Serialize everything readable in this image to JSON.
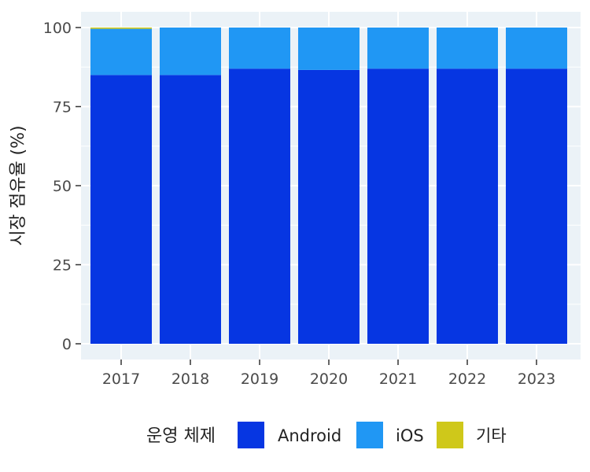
{
  "chart_data": {
    "type": "bar",
    "stacked": true,
    "categories": [
      "2017",
      "2018",
      "2019",
      "2020",
      "2021",
      "2022",
      "2023"
    ],
    "series": [
      {
        "name": "Android",
        "color": "#0636E2",
        "values": [
          85.0,
          85.0,
          87.0,
          86.6,
          87.0,
          87.0,
          87.0
        ]
      },
      {
        "name": "iOS",
        "color": "#2097F4",
        "values": [
          14.6,
          15.0,
          13.0,
          13.4,
          13.0,
          13.0,
          13.0
        ]
      },
      {
        "name": "기타",
        "color": "#CFC81A",
        "values": [
          0.4,
          0.0,
          0.0,
          0.0,
          0.0,
          0.0,
          0.0
        ]
      }
    ],
    "ylim": [
      0,
      100
    ],
    "yticks": [
      0,
      25,
      50,
      75,
      100
    ],
    "xlabel": "",
    "ylabel": "시장 점유율 (%)",
    "legend_title": "운영 체제",
    "legend_position": "bottom",
    "grid": true,
    "panel_background": "#EBF2F7"
  }
}
